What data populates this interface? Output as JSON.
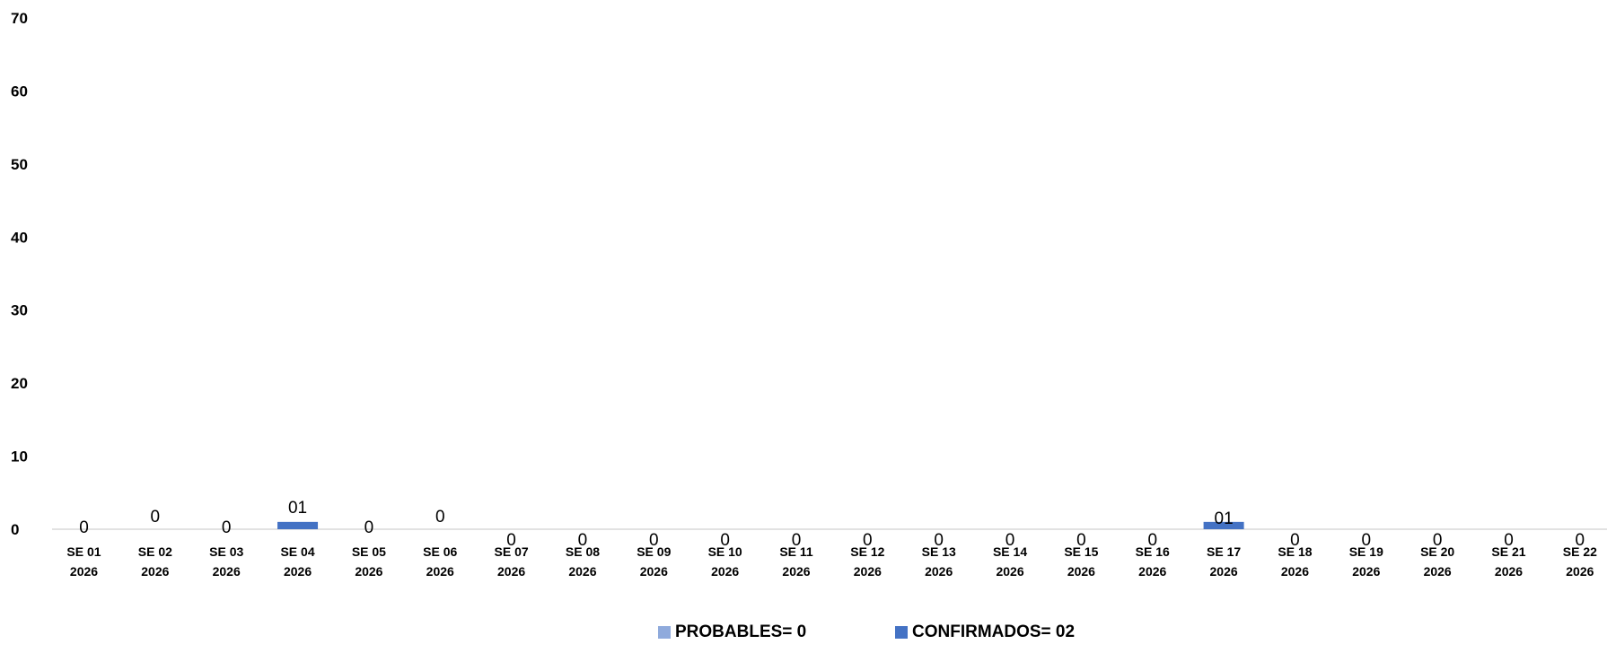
{
  "chart_data": {
    "type": "bar",
    "categories": [
      [
        "SE 01",
        "2026"
      ],
      [
        "SE 02",
        "2026"
      ],
      [
        "SE 03",
        "2026"
      ],
      [
        "SE 04",
        "2026"
      ],
      [
        "SE 05",
        "2026"
      ],
      [
        "SE 06",
        "2026"
      ],
      [
        "SE 07",
        "2026"
      ],
      [
        "SE 08",
        "2026"
      ],
      [
        "SE 09",
        "2026"
      ],
      [
        "SE 10",
        "2026"
      ],
      [
        "SE 11",
        "2026"
      ],
      [
        "SE 12",
        "2026"
      ],
      [
        "SE 13",
        "2026"
      ],
      [
        "SE 14",
        "2026"
      ],
      [
        "SE 15",
        "2026"
      ],
      [
        "SE 16",
        "2026"
      ],
      [
        "SE 17",
        "2026"
      ],
      [
        "SE 18",
        "2026"
      ],
      [
        "SE 19",
        "2026"
      ],
      [
        "SE 20",
        "2026"
      ],
      [
        "SE 21",
        "2026"
      ],
      [
        "SE 22",
        "2026"
      ]
    ],
    "stacked": true,
    "series": [
      {
        "name": "PROBABLES= 0",
        "color": "#8FAADC",
        "values": [
          0,
          0,
          0,
          0,
          0,
          0,
          0,
          0,
          0,
          0,
          0,
          0,
          0,
          0,
          0,
          0,
          0,
          0,
          0,
          0,
          0,
          0
        ],
        "labels": [
          "0",
          "0",
          "0",
          "",
          "0",
          "0",
          "",
          "",
          "",
          "",
          "",
          "",
          "",
          "",
          "",
          "",
          "",
          "",
          "",
          "",
          "",
          ""
        ]
      },
      {
        "name": "CONFIRMADOS= 02",
        "color": "#4472C4",
        "values": [
          0,
          0,
          0,
          1,
          0,
          0,
          0,
          0,
          0,
          0,
          0,
          0,
          0,
          0,
          0,
          0,
          1,
          0,
          0,
          0,
          0,
          0
        ],
        "labels": [
          "",
          "",
          "",
          "01",
          "",
          "",
          "0",
          "0",
          "0",
          "0",
          "0",
          "0",
          "0",
          "0",
          "0",
          "0",
          "01",
          "0",
          "0",
          "0",
          "0",
          "0"
        ]
      }
    ],
    "yticks": [
      0,
      10,
      20,
      30,
      40,
      50,
      60,
      70
    ],
    "ylim": [
      0,
      70
    ],
    "grid": false,
    "legend_position": "bottom"
  }
}
